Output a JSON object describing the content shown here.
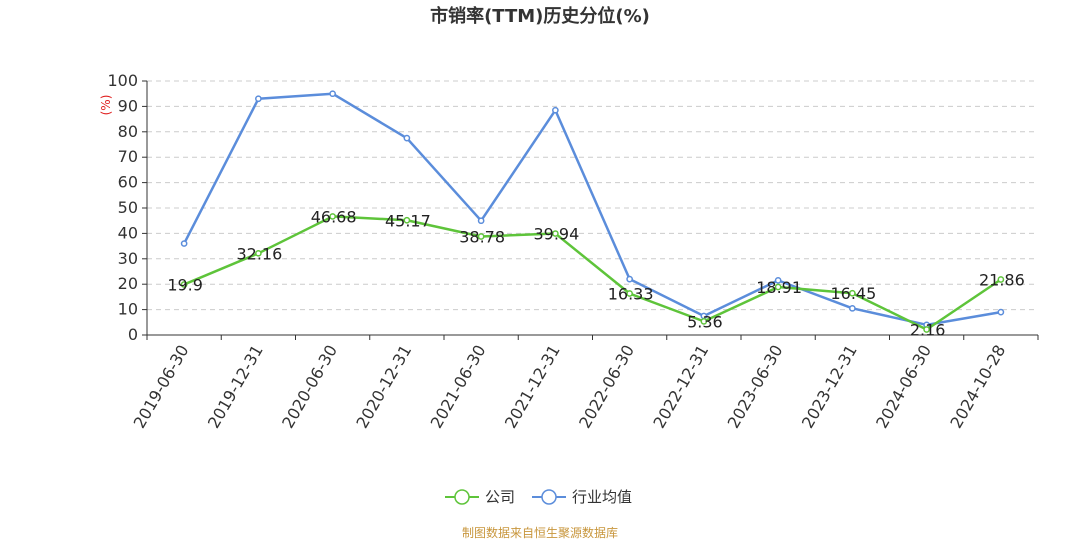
{
  "chart_data": {
    "type": "line",
    "title": "市销率(TTM)历史分位(%)",
    "ylabel": "(%)",
    "ylim": [
      0,
      100
    ],
    "yticks": [
      0,
      10,
      20,
      30,
      40,
      50,
      60,
      70,
      80,
      90,
      100
    ],
    "grid": true,
    "legend_position": "bottom",
    "categories": [
      "2019-06-30",
      "2019-12-31",
      "2020-06-30",
      "2020-12-31",
      "2021-06-30",
      "2021-12-31",
      "2022-06-30",
      "2022-12-31",
      "2023-06-30",
      "2023-12-31",
      "2024-06-30",
      "2024-10-28"
    ],
    "series": [
      {
        "name": "公司",
        "color": "#5ec43a",
        "values": [
          19.9,
          32.16,
          46.68,
          45.17,
          38.78,
          39.94,
          16.33,
          5.36,
          18.91,
          16.45,
          2.16,
          21.86
        ],
        "labels": [
          "19.9",
          "32.16",
          "46.68",
          "45.17",
          "38.78",
          "39.94",
          "16.33",
          "5.36",
          "18.91",
          "16.45",
          "2.16",
          "21.86"
        ]
      },
      {
        "name": "行业均值",
        "color": "#5b8ddb",
        "values": [
          36,
          93,
          95,
          77.5,
          45,
          88.5,
          22,
          7.5,
          21.5,
          10.5,
          4,
          9
        ]
      }
    ]
  },
  "source_text": "制图数据来自恒生聚源数据库",
  "colors": {
    "unit": "#e02020",
    "source": "#c8963c",
    "axis": "#333333",
    "grid": "#cccccc"
  }
}
